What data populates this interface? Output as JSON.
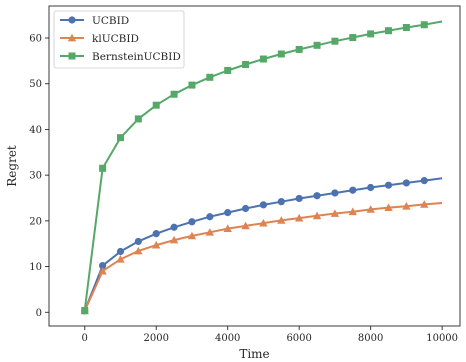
{
  "chart_data": {
    "type": "line",
    "xlabel": "Time",
    "ylabel": "Regret",
    "xlim": [
      -1000,
      10500
    ],
    "ylim": [
      -3,
      67
    ],
    "xticks": [
      0,
      2000,
      4000,
      6000,
      8000,
      10000
    ],
    "yticks": [
      0,
      10,
      20,
      30,
      40,
      50,
      60
    ],
    "grid": false,
    "legend_position": "top-left",
    "x": [
      0,
      500,
      1000,
      1500,
      2000,
      2500,
      3000,
      3500,
      4000,
      4500,
      5000,
      5500,
      6000,
      6500,
      7000,
      7500,
      8000,
      8500,
      9000,
      9500
    ],
    "x_end": 10000,
    "series": [
      {
        "name": "UCBID",
        "color": "#4c72b0",
        "marker": "circle",
        "values": [
          0.3,
          10.2,
          13.3,
          15.5,
          17.2,
          18.6,
          19.8,
          20.9,
          21.8,
          22.7,
          23.5,
          24.2,
          24.9,
          25.5,
          26.1,
          26.7,
          27.3,
          27.8,
          28.3,
          28.8
        ],
        "end_value": 29.3
      },
      {
        "name": "klUCBID",
        "color": "#dd8452",
        "marker": "triangle",
        "values": [
          0.3,
          9.0,
          11.6,
          13.4,
          14.7,
          15.8,
          16.7,
          17.5,
          18.3,
          18.9,
          19.5,
          20.1,
          20.6,
          21.1,
          21.6,
          22.0,
          22.5,
          22.9,
          23.2,
          23.6
        ],
        "end_value": 23.9
      },
      {
        "name": "BernsteinUCBID",
        "color": "#55a868",
        "marker": "square",
        "values": [
          0.4,
          31.5,
          38.2,
          42.3,
          45.3,
          47.7,
          49.7,
          51.4,
          52.9,
          54.2,
          55.4,
          56.5,
          57.5,
          58.4,
          59.3,
          60.1,
          60.9,
          61.6,
          62.3,
          62.9
        ],
        "end_value": 63.6
      }
    ]
  }
}
